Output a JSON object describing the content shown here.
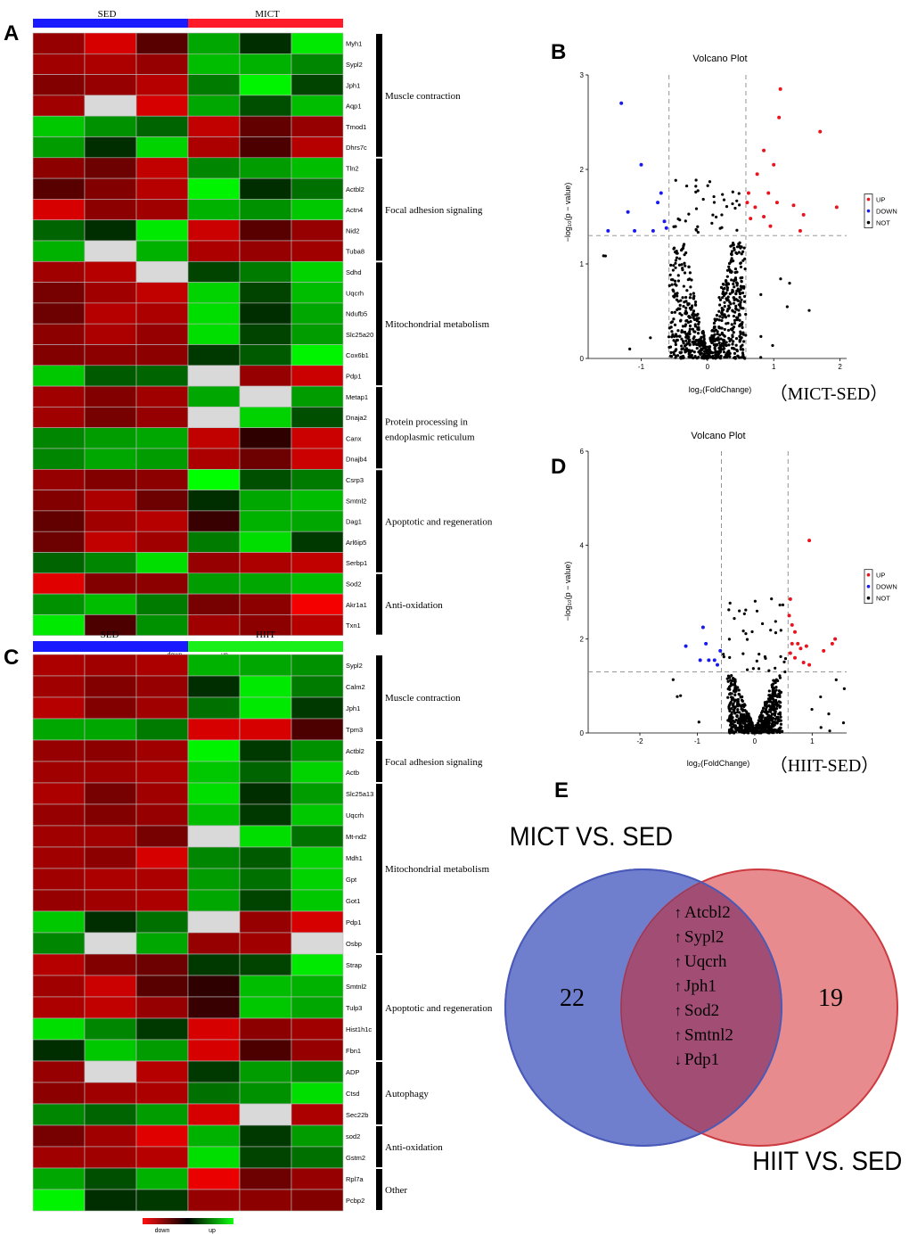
{
  "panels": {
    "A": "A",
    "B": "B",
    "C": "C",
    "D": "D",
    "E": "E"
  },
  "colors": {
    "sed_bar": "#1a1aff",
    "mict_bar": "#ff1a2a",
    "hiit_bar": "#19f019",
    "up_point": "#e8141e",
    "down_point": "#1a1aee",
    "not_point": "#000000",
    "venn_left": "#6f7fce",
    "venn_right": "#e06a6e",
    "venn_overlap": "#a24e74"
  },
  "heatmap_A": {
    "groups": [
      "SED",
      "MICT"
    ],
    "genes": [
      "Myh1",
      "Sypl2",
      "Jph1",
      "Aqp1",
      "Tmod1",
      "Dhrs7c",
      "Tln2",
      "Actbl2",
      "Actn4",
      "Nid2",
      "Tuba8",
      "Sdhd",
      "Uqcrh",
      "Ndufb5",
      "Slc25a20",
      "Cox6b1",
      "Pdp1",
      "Metap1",
      "Dnaja2",
      "Canx",
      "Dnajb4",
      "Csrp3",
      "Smtnl2",
      "Dag1",
      "Arl6ip5",
      "Serbp1",
      "Sod2",
      "Akr1a1",
      "Txn1"
    ],
    "values": [
      [
        -0.55,
        -0.85,
        -0.25,
        0.6,
        0.05,
        0.9
      ],
      [
        -0.6,
        -0.65,
        -0.55,
        0.7,
        0.65,
        0.45
      ],
      [
        -0.45,
        -0.55,
        -0.7,
        0.4,
        0.95,
        0.15
      ],
      [
        -0.6,
        null,
        -0.85,
        0.6,
        0.2,
        0.7
      ],
      [
        0.75,
        0.5,
        0.3,
        -0.75,
        -0.3,
        -0.55
      ],
      [
        0.55,
        0.05,
        0.8,
        -0.65,
        -0.2,
        -0.7
      ],
      [
        -0.5,
        -0.35,
        -0.75,
        0.45,
        0.55,
        0.7
      ],
      [
        -0.25,
        -0.45,
        -0.7,
        0.95,
        0.05,
        0.35
      ],
      [
        -0.85,
        -0.5,
        -0.6,
        0.65,
        0.5,
        0.75
      ],
      [
        0.3,
        0.05,
        0.9,
        -0.8,
        -0.25,
        -0.55
      ],
      [
        0.65,
        null,
        0.65,
        -0.65,
        -0.55,
        -0.6
      ],
      [
        -0.6,
        -0.7,
        null,
        0.15,
        0.4,
        0.8
      ],
      [
        -0.4,
        -0.6,
        -0.75,
        0.8,
        0.15,
        0.7
      ],
      [
        -0.35,
        -0.7,
        -0.65,
        0.85,
        0.05,
        0.6
      ],
      [
        -0.5,
        -0.65,
        -0.55,
        0.85,
        0.15,
        0.55
      ],
      [
        -0.45,
        -0.5,
        -0.5,
        0.1,
        0.25,
        0.95
      ],
      [
        0.75,
        0.25,
        0.3,
        null,
        -0.55,
        -0.8
      ],
      [
        -0.6,
        -0.45,
        -0.6,
        0.6,
        null,
        0.55
      ],
      [
        -0.6,
        -0.4,
        -0.55,
        null,
        0.8,
        0.2
      ],
      [
        0.45,
        0.55,
        0.6,
        -0.75,
        -0.05,
        -0.8
      ],
      [
        0.45,
        0.6,
        0.55,
        -0.65,
        -0.35,
        -0.8
      ],
      [
        -0.55,
        -0.45,
        -0.5,
        1.0,
        0.2,
        0.4
      ],
      [
        -0.45,
        -0.65,
        -0.35,
        0.05,
        0.6,
        0.7
      ],
      [
        -0.3,
        -0.6,
        -0.7,
        -0.1,
        0.65,
        0.6
      ],
      [
        -0.35,
        -0.75,
        -0.6,
        0.4,
        0.85,
        0.1
      ],
      [
        0.3,
        0.45,
        0.85,
        -0.55,
        -0.65,
        -0.75
      ],
      [
        -0.9,
        -0.45,
        -0.5,
        0.55,
        0.6,
        0.7
      ],
      [
        0.5,
        0.7,
        0.4,
        -0.4,
        -0.5,
        -1.0
      ],
      [
        0.9,
        -0.2,
        0.5,
        -0.6,
        -0.5,
        -0.7
      ]
    ],
    "pathways": [
      {
        "label": "Muscle contraction",
        "start": 0,
        "end": 5
      },
      {
        "label": "Focal adhesion signaling",
        "start": 6,
        "end": 10
      },
      {
        "label": "Mitochondrial metabolism",
        "start": 11,
        "end": 16
      },
      {
        "label": "Protein processing in",
        "label2": "endoplasmic reticulum",
        "start": 17,
        "end": 20
      },
      {
        "label": "Apoptotic and regeneration",
        "start": 21,
        "end": 25
      },
      {
        "label": "Anti-oxidation",
        "start": 26,
        "end": 28
      }
    ],
    "legend": {
      "low": "down",
      "high": "up"
    }
  },
  "heatmap_C": {
    "groups": [
      "SED",
      "HIIT"
    ],
    "genes": [
      "Sypl2",
      "Calm2",
      "Jph1",
      "Tpm3",
      "Actbl2",
      "Actb",
      "Slc25a13",
      "Uqcrh",
      "Mt-nd2",
      "Mdh1",
      "Gpt",
      "Got1",
      "Pdp1",
      "Osbp",
      "Strap",
      "Smtnl2",
      "Tulp3",
      "Hist1h1c",
      "Fbn1",
      "ADP",
      "Ctsd",
      "Sec22b",
      "sod2",
      "Gstm2",
      "Rpl7a",
      "Pcbp2"
    ],
    "values": [
      [
        -0.65,
        -0.6,
        -0.65,
        0.65,
        0.6,
        0.5
      ],
      [
        -0.6,
        -0.45,
        -0.55,
        0.05,
        0.9,
        0.4
      ],
      [
        -0.7,
        -0.45,
        -0.6,
        0.35,
        0.9,
        0.1
      ],
      [
        0.6,
        0.6,
        0.4,
        -0.85,
        -0.85,
        -0.2
      ],
      [
        -0.55,
        -0.5,
        -0.6,
        0.95,
        0.1,
        0.5
      ],
      [
        -0.6,
        -0.6,
        -0.65,
        0.75,
        0.3,
        0.8
      ],
      [
        -0.65,
        -0.4,
        -0.6,
        0.85,
        0.05,
        0.55
      ],
      [
        -0.55,
        -0.45,
        -0.55,
        0.7,
        0.1,
        0.75
      ],
      [
        -0.6,
        -0.6,
        -0.4,
        null,
        0.85,
        0.35
      ],
      [
        -0.6,
        -0.5,
        -0.85,
        0.45,
        0.25,
        0.8
      ],
      [
        -0.6,
        -0.65,
        -0.65,
        0.55,
        0.35,
        0.8
      ],
      [
        -0.55,
        -0.6,
        -0.65,
        0.6,
        0.15,
        0.75
      ],
      [
        0.75,
        0.05,
        0.35,
        null,
        -0.55,
        -0.85
      ],
      [
        0.45,
        null,
        0.6,
        -0.55,
        -0.6,
        null
      ],
      [
        -0.7,
        -0.45,
        -0.35,
        0.1,
        0.15,
        0.9
      ],
      [
        -0.6,
        -0.8,
        -0.25,
        -0.05,
        0.7,
        0.65
      ],
      [
        -0.65,
        -0.75,
        -0.55,
        -0.1,
        0.75,
        0.6
      ],
      [
        0.85,
        0.45,
        0.1,
        -0.85,
        -0.5,
        -0.6
      ],
      [
        0.05,
        0.75,
        0.55,
        -0.85,
        -0.2,
        -0.55
      ],
      [
        -0.55,
        null,
        -0.7,
        0.1,
        0.55,
        0.45
      ],
      [
        -0.5,
        -0.6,
        -0.65,
        0.35,
        0.5,
        0.85
      ],
      [
        0.45,
        0.3,
        0.55,
        -0.85,
        null,
        -0.65
      ],
      [
        -0.4,
        -0.6,
        -0.9,
        0.65,
        0.1,
        0.55
      ],
      [
        -0.6,
        -0.6,
        -0.7,
        0.85,
        0.15,
        0.35
      ],
      [
        0.6,
        0.2,
        0.65,
        -0.95,
        -0.35,
        -0.55
      ],
      [
        0.95,
        0.05,
        0.1,
        -0.55,
        -0.5,
        -0.45
      ]
    ],
    "pathways": [
      {
        "label": "Muscle contraction",
        "start": 0,
        "end": 3
      },
      {
        "label": "Focal adhesion signaling",
        "start": 4,
        "end": 5
      },
      {
        "label": "Mitochondrial metabolism",
        "start": 6,
        "end": 13
      },
      {
        "label": "Apoptotic and regeneration",
        "start": 14,
        "end": 18
      },
      {
        "label": "Autophagy",
        "start": 19,
        "end": 21
      },
      {
        "label": "Anti-oxidation",
        "start": 22,
        "end": 23
      },
      {
        "label": "Other",
        "start": 24,
        "end": 25
      }
    ],
    "legend": {
      "low": "down",
      "high": "up"
    }
  },
  "chart_data": [
    {
      "type": "heatmap",
      "title": "",
      "ref": "heatmap_A"
    },
    {
      "type": "scatter",
      "title": "Volcano Plot",
      "subtitle": "（MICT-SED）",
      "xlabel": "log₂(FoldChange)",
      "ylabel": "−log₁₀(p − value)",
      "xlim": [
        -1.8,
        2.1
      ],
      "ylim": [
        0,
        3.0
      ],
      "xticks": [
        -1,
        0,
        1,
        2
      ],
      "yticks": [
        0,
        1,
        2,
        3
      ],
      "thresholds": {
        "x": [
          -0.58,
          0.58
        ],
        "y": 1.3
      },
      "legend": [
        "UP",
        "DOWN",
        "NOT"
      ],
      "up_points": [
        [
          1.1,
          2.85
        ],
        [
          1.08,
          2.55
        ],
        [
          1.7,
          2.4
        ],
        [
          0.85,
          2.2
        ],
        [
          1.0,
          2.05
        ],
        [
          0.75,
          1.95
        ],
        [
          0.62,
          1.75
        ],
        [
          0.92,
          1.75
        ],
        [
          1.3,
          1.62
        ],
        [
          1.95,
          1.6
        ],
        [
          0.6,
          1.65
        ],
        [
          1.05,
          1.65
        ],
        [
          0.72,
          1.6
        ],
        [
          0.85,
          1.5
        ],
        [
          1.45,
          1.52
        ],
        [
          1.4,
          1.35
        ],
        [
          0.65,
          1.48
        ],
        [
          0.95,
          1.4
        ]
      ],
      "down_points": [
        [
          -1.3,
          2.7
        ],
        [
          -1.0,
          2.05
        ],
        [
          -0.7,
          1.75
        ],
        [
          -0.75,
          1.65
        ],
        [
          -1.2,
          1.55
        ],
        [
          -0.65,
          1.45
        ],
        [
          -1.5,
          1.35
        ],
        [
          -1.1,
          1.35
        ],
        [
          -0.82,
          1.35
        ],
        [
          -0.62,
          1.38
        ]
      ],
      "seed": 11,
      "n_not": 700,
      "spread_x": 0.55
    },
    {
      "type": "scatter",
      "title": "Volcano Plot",
      "subtitle": "（HIIT-SED）",
      "xlabel": "log₂(FoldChange)",
      "ylabel": "−log₁₀(p − value)",
      "xlim": [
        -2.9,
        1.6
      ],
      "ylim": [
        0,
        6.0
      ],
      "xticks": [
        -2,
        -1,
        0,
        1
      ],
      "yticks": [
        0,
        2,
        4,
        6
      ],
      "thresholds": {
        "x": [
          -0.58,
          0.58
        ],
        "y": 1.3
      },
      "legend": [
        "UP",
        "DOWN",
        "NOT"
      ],
      "up_points": [
        [
          0.95,
          4.1
        ],
        [
          1.4,
          2.0
        ],
        [
          1.35,
          1.9
        ],
        [
          1.2,
          1.75
        ],
        [
          0.62,
          2.85
        ],
        [
          0.6,
          2.5
        ],
        [
          0.65,
          2.3
        ],
        [
          0.7,
          2.15
        ],
        [
          0.75,
          1.9
        ],
        [
          0.8,
          1.8
        ],
        [
          0.9,
          1.85
        ],
        [
          0.62,
          1.7
        ],
        [
          0.7,
          1.6
        ],
        [
          0.85,
          1.5
        ],
        [
          0.95,
          1.45
        ],
        [
          0.65,
          1.9
        ]
      ],
      "down_points": [
        [
          -0.9,
          2.25
        ],
        [
          -1.2,
          1.85
        ],
        [
          -0.85,
          1.9
        ],
        [
          -0.8,
          1.55
        ],
        [
          -0.7,
          1.55
        ],
        [
          -0.65,
          1.45
        ],
        [
          -0.95,
          1.55
        ],
        [
          -0.6,
          1.75
        ]
      ],
      "seed": 29,
      "n_not": 620,
      "spread_x": 0.45
    },
    {
      "type": "venn",
      "left_label": "MICT VS. SED",
      "right_label": "HIIT VS. SED",
      "left_only": "22",
      "right_only": "19",
      "shared_genes": [
        "Atcbl2",
        "Sypl2",
        "Uqcrh",
        "Jph1",
        "Sod2",
        "Smtnl2",
        "Pdp1"
      ],
      "shared_arrows": [
        "↑",
        "↑",
        "↑",
        "↑",
        "↑",
        "↑",
        "↓"
      ]
    }
  ]
}
